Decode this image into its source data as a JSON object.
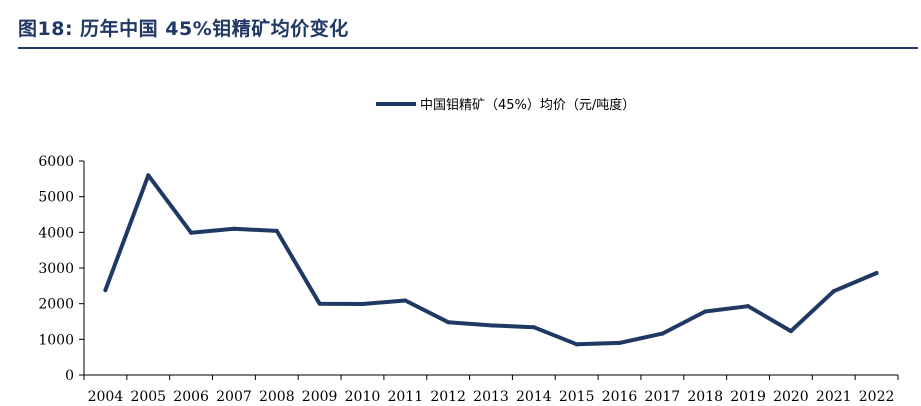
{
  "figure": {
    "title": "图18:  历年中国 45%钼精矿均价变化",
    "accent_color": "#1f3864"
  },
  "chart_data": {
    "type": "line",
    "title": "",
    "xlabel": "",
    "ylabel": "",
    "x": [
      "2004",
      "2005",
      "2006",
      "2007",
      "2008",
      "2009",
      "2010",
      "2011",
      "2012",
      "2013",
      "2014",
      "2015",
      "2016",
      "2017",
      "2018",
      "2019",
      "2020",
      "2021",
      "2022"
    ],
    "yticks": [
      0,
      1000,
      2000,
      3000,
      4000,
      5000,
      6000
    ],
    "ylim": [
      0,
      6000
    ],
    "grid": false,
    "legend_position": "top-center",
    "series": [
      {
        "name": "中国钼精矿（45%）均价（元/吨度）",
        "color": "#1f3864",
        "values": [
          2380,
          5600,
          3990,
          4100,
          4040,
          2000,
          1990,
          2090,
          1480,
          1390,
          1340,
          860,
          900,
          1160,
          1780,
          1930,
          1230,
          2350,
          2860
        ]
      }
    ]
  }
}
